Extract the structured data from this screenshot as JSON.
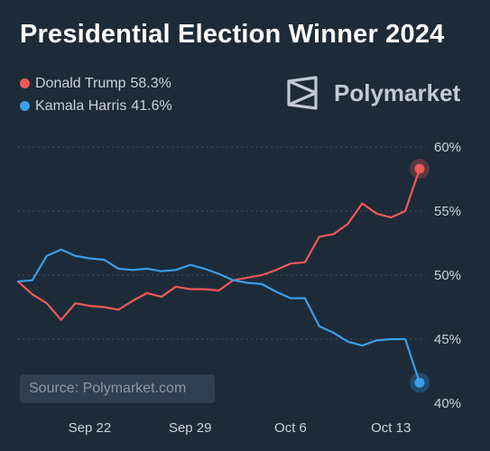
{
  "colors": {
    "background": "#1d2b39",
    "trump": "#ee5a55",
    "harris": "#3a9ee8",
    "grid": "#4a5866",
    "text": "#c9d1d9"
  },
  "header": {
    "title": "Presidential Election Winner 2024"
  },
  "legend": {
    "items": [
      {
        "name": "Donald Trump",
        "value": "58.3%",
        "color": "#ee5a55"
      },
      {
        "name": "Kamala Harris",
        "value": "41.6%",
        "color": "#3a9ee8"
      }
    ]
  },
  "brand": {
    "name": "Polymarket",
    "icon": "polymarket-logo-icon"
  },
  "source": {
    "text": "Source: Polymarket.com"
  },
  "chart_data": {
    "type": "line",
    "title": "Presidential Election Winner 2024",
    "xlabel": "",
    "ylabel": "",
    "x_ticks": [
      "Sep 22",
      "Sep 29",
      "Oct 6",
      "Oct 13"
    ],
    "y_ticks": [
      "40%",
      "45%",
      "50%",
      "55%",
      "60%"
    ],
    "ylim": [
      40,
      60
    ],
    "grid": "horizontal dotted",
    "legend_placement": "top-left",
    "x_range": [
      "2024-09-17",
      "2024-10-15"
    ],
    "series": [
      {
        "name": "Donald Trump",
        "color": "#ee5a55",
        "points": [
          [
            "2024-09-17",
            49.5
          ],
          [
            "2024-09-18",
            48.5
          ],
          [
            "2024-09-19",
            47.8
          ],
          [
            "2024-09-20",
            46.5
          ],
          [
            "2024-09-21",
            47.8
          ],
          [
            "2024-09-22",
            47.6
          ],
          [
            "2024-09-23",
            47.5
          ],
          [
            "2024-09-24",
            47.3
          ],
          [
            "2024-09-25",
            48.0
          ],
          [
            "2024-09-26",
            48.6
          ],
          [
            "2024-09-27",
            48.3
          ],
          [
            "2024-09-28",
            49.1
          ],
          [
            "2024-09-29",
            48.9
          ],
          [
            "2024-09-30",
            48.9
          ],
          [
            "2024-10-01",
            48.8
          ],
          [
            "2024-10-02",
            49.6
          ],
          [
            "2024-10-03",
            49.8
          ],
          [
            "2024-10-04",
            50.0
          ],
          [
            "2024-10-05",
            50.4
          ],
          [
            "2024-10-06",
            50.9
          ],
          [
            "2024-10-07",
            51.0
          ],
          [
            "2024-10-08",
            53.0
          ],
          [
            "2024-10-09",
            53.2
          ],
          [
            "2024-10-10",
            54.0
          ],
          [
            "2024-10-11",
            55.6
          ],
          [
            "2024-10-12",
            54.8
          ],
          [
            "2024-10-13",
            54.5
          ],
          [
            "2024-10-14",
            55.0
          ],
          [
            "2024-10-15",
            58.3
          ]
        ]
      },
      {
        "name": "Kamala Harris",
        "color": "#3a9ee8",
        "points": [
          [
            "2024-09-17",
            49.5
          ],
          [
            "2024-09-18",
            49.6
          ],
          [
            "2024-09-19",
            51.5
          ],
          [
            "2024-09-20",
            52.0
          ],
          [
            "2024-09-21",
            51.5
          ],
          [
            "2024-09-22",
            51.3
          ],
          [
            "2024-09-23",
            51.2
          ],
          [
            "2024-09-24",
            50.5
          ],
          [
            "2024-09-25",
            50.4
          ],
          [
            "2024-09-26",
            50.5
          ],
          [
            "2024-09-27",
            50.3
          ],
          [
            "2024-09-28",
            50.4
          ],
          [
            "2024-09-29",
            50.8
          ],
          [
            "2024-09-30",
            50.5
          ],
          [
            "2024-10-01",
            50.1
          ],
          [
            "2024-10-02",
            49.6
          ],
          [
            "2024-10-03",
            49.4
          ],
          [
            "2024-10-04",
            49.3
          ],
          [
            "2024-10-05",
            48.7
          ],
          [
            "2024-10-06",
            48.2
          ],
          [
            "2024-10-07",
            48.2
          ],
          [
            "2024-10-08",
            46.0
          ],
          [
            "2024-10-09",
            45.5
          ],
          [
            "2024-10-10",
            44.8
          ],
          [
            "2024-10-11",
            44.5
          ],
          [
            "2024-10-12",
            44.9
          ],
          [
            "2024-10-13",
            45.0
          ],
          [
            "2024-10-14",
            45.0
          ],
          [
            "2024-10-15",
            41.6
          ]
        ]
      }
    ]
  }
}
